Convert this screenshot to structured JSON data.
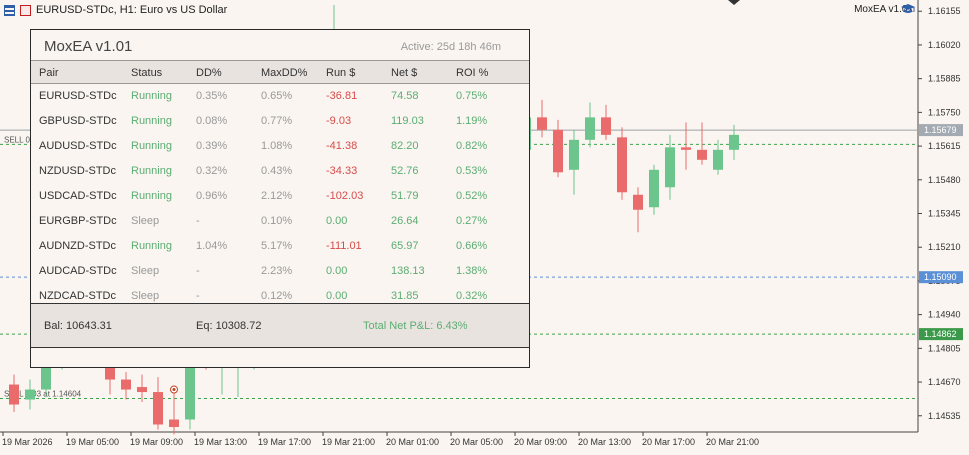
{
  "window": {
    "symbol_title": "EURUSD-STDc, H1:  Euro vs US Dollar",
    "ea_name": "MoxEA v1.01"
  },
  "colors": {
    "background": "#faf5f0",
    "bull": "#6dc58e",
    "bear": "#ea6b6b",
    "running": "#5bad73",
    "negative": "#d74b4b",
    "muted": "#999999"
  },
  "price_axis": {
    "ticks": [
      "1.16155",
      "1.16020",
      "1.15885",
      "1.15750",
      "1.15615",
      "1.15480",
      "1.15345",
      "1.15210",
      "1.15075",
      "1.14940",
      "1.14805",
      "1.14670",
      "1.14535"
    ],
    "current_price_tag": "1.15679",
    "level_tag_blue": "1.15090",
    "level_tag_green": "1.14862"
  },
  "time_axis": {
    "labels": [
      "19 Mar 2026",
      "19 Mar 05:00",
      "19 Mar 09:00",
      "19 Mar 13:00",
      "19 Mar 17:00",
      "19 Mar 21:00",
      "20 Mar 01:00",
      "20 Mar 05:00",
      "20 Mar 09:00",
      "20 Mar 13:00",
      "20 Mar 17:00",
      "20 Mar 21:00"
    ]
  },
  "trade_lines": {
    "sell_upper": "SELL 0.02 at 1.15622",
    "sell_lower": "SELL 0.03 at 1.14604"
  },
  "chart_data": {
    "type": "candlestick",
    "symbol": "EURUSD-STDc",
    "timeframe": "H1",
    "ylim": [
      1.1447,
      1.162
    ],
    "candles": [
      {
        "o": 1.1466,
        "h": 1.147,
        "l": 1.1455,
        "c": 1.1458
      },
      {
        "o": 1.146,
        "h": 1.1468,
        "l": 1.1456,
        "c": 1.1464
      },
      {
        "o": 1.1464,
        "h": 1.148,
        "l": 1.1461,
        "c": 1.1476
      },
      {
        "o": 1.1476,
        "h": 1.1481,
        "l": 1.1472,
        "c": 1.1479
      },
      {
        "o": 1.1478,
        "h": 1.1486,
        "l": 1.1473,
        "c": 1.1484
      },
      {
        "o": 1.1483,
        "h": 1.1488,
        "l": 1.1475,
        "c": 1.1477
      },
      {
        "o": 1.1477,
        "h": 1.148,
        "l": 1.1462,
        "c": 1.1468
      },
      {
        "o": 1.1468,
        "h": 1.1471,
        "l": 1.146,
        "c": 1.1464
      },
      {
        "o": 1.1465,
        "h": 1.147,
        "l": 1.1459,
        "c": 1.1463
      },
      {
        "o": 1.1463,
        "h": 1.1469,
        "l": 1.1448,
        "c": 1.145
      },
      {
        "o": 1.1452,
        "h": 1.1464,
        "l": 1.1446,
        "c": 1.1449
      },
      {
        "o": 1.1452,
        "h": 1.1484,
        "l": 1.1448,
        "c": 1.1481
      },
      {
        "o": 1.1479,
        "h": 1.1487,
        "l": 1.1472,
        "c": 1.1475
      },
      {
        "o": 1.1475,
        "h": 1.1482,
        "l": 1.1462,
        "c": 1.148
      },
      {
        "o": 1.1479,
        "h": 1.1484,
        "l": 1.1461,
        "c": 1.1482
      },
      {
        "o": 1.148,
        "h": 1.1515,
        "l": 1.1472,
        "c": 1.1513
      },
      {
        "o": 1.1511,
        "h": 1.1518,
        "l": 1.1502,
        "c": 1.151
      },
      {
        "o": 1.151,
        "h": 1.1532,
        "l": 1.1505,
        "c": 1.1529
      },
      {
        "o": 1.1534,
        "h": 1.1562,
        "l": 1.153,
        "c": 1.156
      },
      {
        "o": 1.1557,
        "h": 1.1586,
        "l": 1.155,
        "c": 1.1583
      },
      {
        "o": 1.1582,
        "h": 1.1618,
        "l": 1.1578,
        "c": 1.1585
      },
      {
        "o": 1.1586,
        "h": 1.159,
        "l": 1.1581,
        "c": 1.1589
      },
      {
        "o": 1.1589,
        "h": 1.1591,
        "l": 1.1576,
        "c": 1.1579
      },
      {
        "o": 1.158,
        "h": 1.1594,
        "l": 1.1578,
        "c": 1.1577
      },
      {
        "o": 1.1578,
        "h": 1.1583,
        "l": 1.1573,
        "c": 1.1575
      },
      {
        "o": 1.1575,
        "h": 1.1579,
        "l": 1.1568,
        "c": 1.1571
      },
      {
        "o": 1.1572,
        "h": 1.1574,
        "l": 1.1562,
        "c": 1.1564
      },
      {
        "o": 1.1564,
        "h": 1.1569,
        "l": 1.1562,
        "c": 1.1565
      },
      {
        "o": 1.1565,
        "h": 1.1568,
        "l": 1.1557,
        "c": 1.1559
      },
      {
        "o": 1.156,
        "h": 1.1564,
        "l": 1.1555,
        "c": 1.1558
      },
      {
        "o": 1.1558,
        "h": 1.1564,
        "l": 1.1555,
        "c": 1.1556
      },
      {
        "o": 1.1556,
        "h": 1.1566,
        "l": 1.1553,
        "c": 1.156
      },
      {
        "o": 1.156,
        "h": 1.1575,
        "l": 1.1556,
        "c": 1.1573
      },
      {
        "o": 1.1573,
        "h": 1.158,
        "l": 1.1565,
        "c": 1.1568
      },
      {
        "o": 1.1568,
        "h": 1.1572,
        "l": 1.1549,
        "c": 1.1551
      },
      {
        "o": 1.1552,
        "h": 1.1568,
        "l": 1.1542,
        "c": 1.1564
      },
      {
        "o": 1.1564,
        "h": 1.1579,
        "l": 1.1561,
        "c": 1.1573
      },
      {
        "o": 1.1573,
        "h": 1.1578,
        "l": 1.1564,
        "c": 1.1566
      },
      {
        "o": 1.1565,
        "h": 1.1569,
        "l": 1.154,
        "c": 1.1543
      },
      {
        "o": 1.1542,
        "h": 1.1545,
        "l": 1.1527,
        "c": 1.1536
      },
      {
        "o": 1.1537,
        "h": 1.1554,
        "l": 1.1534,
        "c": 1.1552
      },
      {
        "o": 1.1545,
        "h": 1.1566,
        "l": 1.154,
        "c": 1.1561
      },
      {
        "o": 1.1561,
        "h": 1.1571,
        "l": 1.1552,
        "c": 1.156
      },
      {
        "o": 1.156,
        "h": 1.1571,
        "l": 1.1554,
        "c": 1.1556
      },
      {
        "o": 1.1552,
        "h": 1.1564,
        "l": 1.155,
        "c": 1.156
      },
      {
        "o": 1.156,
        "h": 1.157,
        "l": 1.1556,
        "c": 1.1566
      }
    ]
  },
  "panel": {
    "title": "MoxEA v1.01",
    "active": "Active: 25d 18h 46m",
    "headers": [
      "Pair",
      "Status",
      "DD%",
      "MaxDD%",
      "Run $",
      "Net $",
      "ROI %"
    ],
    "rows": [
      {
        "pair": "EURUSD-STDc",
        "status": "Running",
        "dd": "0.35%",
        "maxdd": "0.65%",
        "run": "-36.81",
        "net": "74.58",
        "roi": "0.75%",
        "active": true,
        "run_negative": true
      },
      {
        "pair": "GBPUSD-STDc",
        "status": "Running",
        "dd": "0.08%",
        "maxdd": "0.77%",
        "run": "-9.03",
        "net": "119.03",
        "roi": "1.19%",
        "active": true,
        "run_negative": true
      },
      {
        "pair": "AUDUSD-STDc",
        "status": "Running",
        "dd": "0.39%",
        "maxdd": "1.08%",
        "run": "-41.38",
        "net": "82.20",
        "roi": "0.82%",
        "active": true,
        "run_negative": true
      },
      {
        "pair": "NZDUSD-STDc",
        "status": "Running",
        "dd": "0.32%",
        "maxdd": "0.43%",
        "run": "-34.33",
        "net": "52.76",
        "roi": "0.53%",
        "active": true,
        "run_negative": true
      },
      {
        "pair": "USDCAD-STDc",
        "status": "Running",
        "dd": "0.96%",
        "maxdd": "2.12%",
        "run": "-102.03",
        "net": "51.79",
        "roi": "0.52%",
        "active": true,
        "run_negative": true
      },
      {
        "pair": "EURGBP-STDc",
        "status": "Sleep",
        "dd": "-",
        "maxdd": "0.10%",
        "run": "0.00",
        "net": "26.64",
        "roi": "0.27%",
        "active": false,
        "run_negative": false
      },
      {
        "pair": "AUDNZD-STDc",
        "status": "Running",
        "dd": "1.04%",
        "maxdd": "5.17%",
        "run": "-111.01",
        "net": "65.97",
        "roi": "0.66%",
        "active": true,
        "run_negative": true
      },
      {
        "pair": "AUDCAD-STDc",
        "status": "Sleep",
        "dd": "-",
        "maxdd": "2.23%",
        "run": "0.00",
        "net": "138.13",
        "roi": "1.38%",
        "active": false,
        "run_negative": false
      },
      {
        "pair": "NZDCAD-STDc",
        "status": "Sleep",
        "dd": "-",
        "maxdd": "0.12%",
        "run": "0.00",
        "net": "31.85",
        "roi": "0.32%",
        "active": false,
        "run_negative": false
      }
    ],
    "footer": {
      "balance": "Bal: 10643.31",
      "equity": "Eq: 10308.72",
      "total": "Total Net P&L: 6.43%"
    }
  }
}
